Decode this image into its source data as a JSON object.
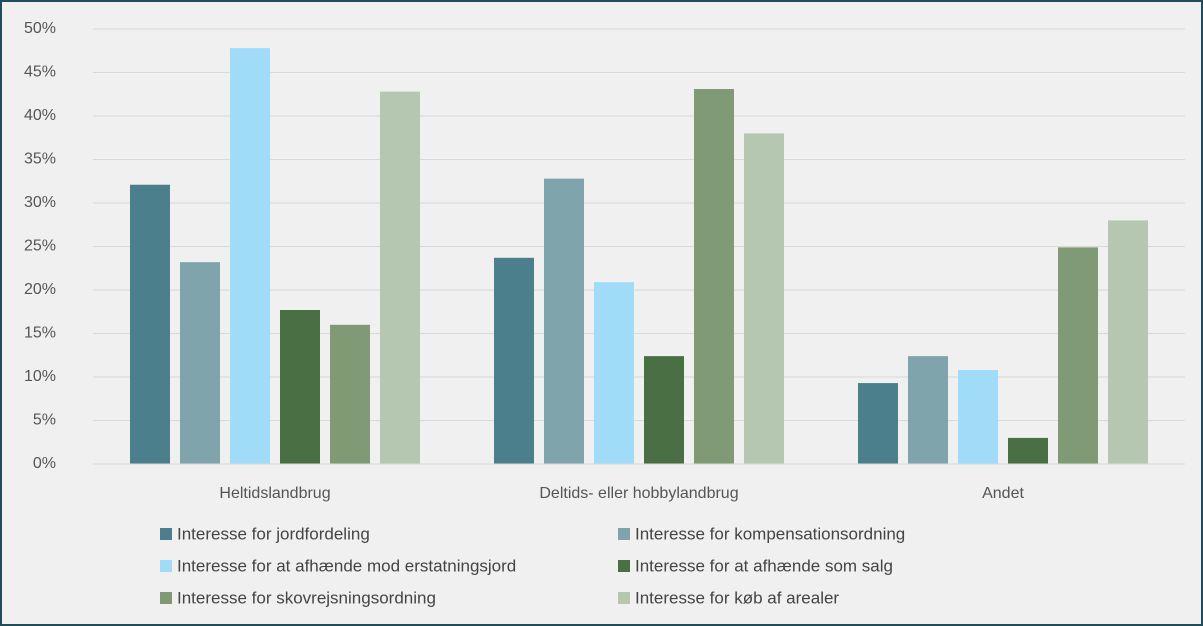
{
  "chart_data": {
    "type": "bar",
    "categories": [
      "Heltidslandbrug",
      "Deltids- eller hobbylandbrug",
      "Andet"
    ],
    "series": [
      {
        "name": "Interesse for jordfordeling",
        "color": "#4b7f8c",
        "values": [
          32.1,
          23.7,
          9.3
        ]
      },
      {
        "name": "Interesse for kompensationsordning",
        "color": "#7fa4ac",
        "values": [
          23.2,
          32.8,
          12.4
        ]
      },
      {
        "name": "Interesse for at afhænde mod erstatningsjord",
        "color": "#a0dcf8",
        "values": [
          47.8,
          20.9,
          10.8
        ]
      },
      {
        "name": "Interesse for at afhænde som salg",
        "color": "#4a6f44",
        "values": [
          17.7,
          12.4,
          3.0
        ]
      },
      {
        "name": "Interesse for skovrejsningsordning",
        "color": "#7f9a74",
        "values": [
          16.0,
          43.1,
          24.9
        ]
      },
      {
        "name": "Interesse for køb af arealer",
        "color": "#b5c7b1",
        "values": [
          42.8,
          38.0,
          28.0
        ]
      }
    ],
    "ylim": [
      0,
      50
    ],
    "yticks": [
      {
        "value": 0,
        "label": "0%"
      },
      {
        "value": 5,
        "label": "5%"
      },
      {
        "value": 10,
        "label": "10%"
      },
      {
        "value": 15,
        "label": "15%"
      },
      {
        "value": 20,
        "label": "20%"
      },
      {
        "value": 25,
        "label": "25%"
      },
      {
        "value": 30,
        "label": "30%"
      },
      {
        "value": 35,
        "label": "35%"
      },
      {
        "value": 40,
        "label": "40%"
      },
      {
        "value": 45,
        "label": "45%"
      },
      {
        "value": 50,
        "label": "50%"
      }
    ],
    "grid": true,
    "legend": "bottom"
  }
}
